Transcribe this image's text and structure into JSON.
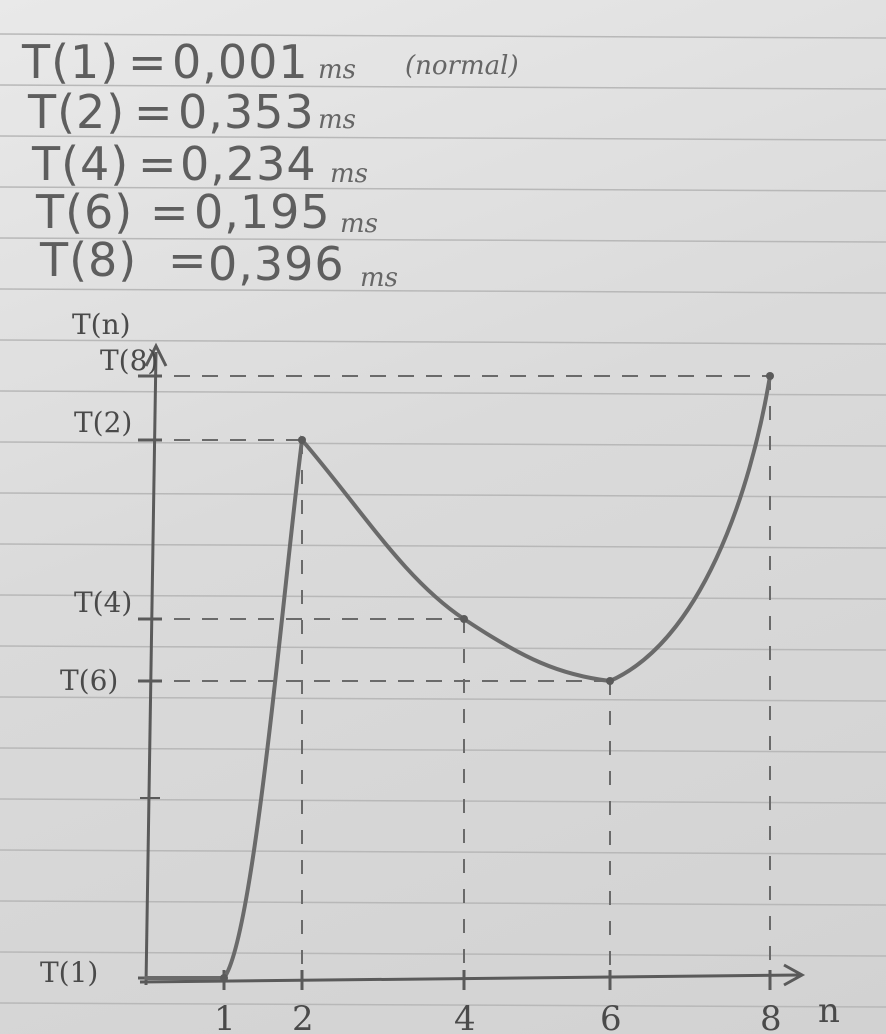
{
  "notes": [
    {
      "lhs": "T(1)",
      "value": "0,001",
      "unit": "ms",
      "remark": "(normal)"
    },
    {
      "lhs": "T(2)",
      "value": "0,353",
      "unit": "ms"
    },
    {
      "lhs": "T(4)",
      "value": "0,234",
      "unit": "ms"
    },
    {
      "lhs": "T(6)",
      "value": "0,195",
      "unit": "ms"
    },
    {
      "lhs": "T(8)",
      "value": "0,396",
      "unit": "ms"
    }
  ],
  "chart_data": {
    "type": "line",
    "ylabel": "T(n)",
    "xlabel": "n",
    "x_ticks": [
      "1",
      "2",
      "4",
      "6",
      "8"
    ],
    "y_ticks": [
      "T(1)",
      "T(6)",
      "T(4)",
      "T(2)",
      "T(8)"
    ],
    "series": [
      {
        "x": [
          1,
          2,
          4,
          6,
          8
        ],
        "y": [
          0.001,
          0.353,
          0.234,
          0.195,
          0.396
        ]
      }
    ],
    "ylim": [
      0,
      0.42
    ],
    "xlim": [
      0,
      8.2
    ]
  },
  "colors": {
    "ink": "#5a5a5a",
    "pencil": "#6a6a6a",
    "ruled_line": "#b8b8b8",
    "paper": "#e4e4e4"
  }
}
